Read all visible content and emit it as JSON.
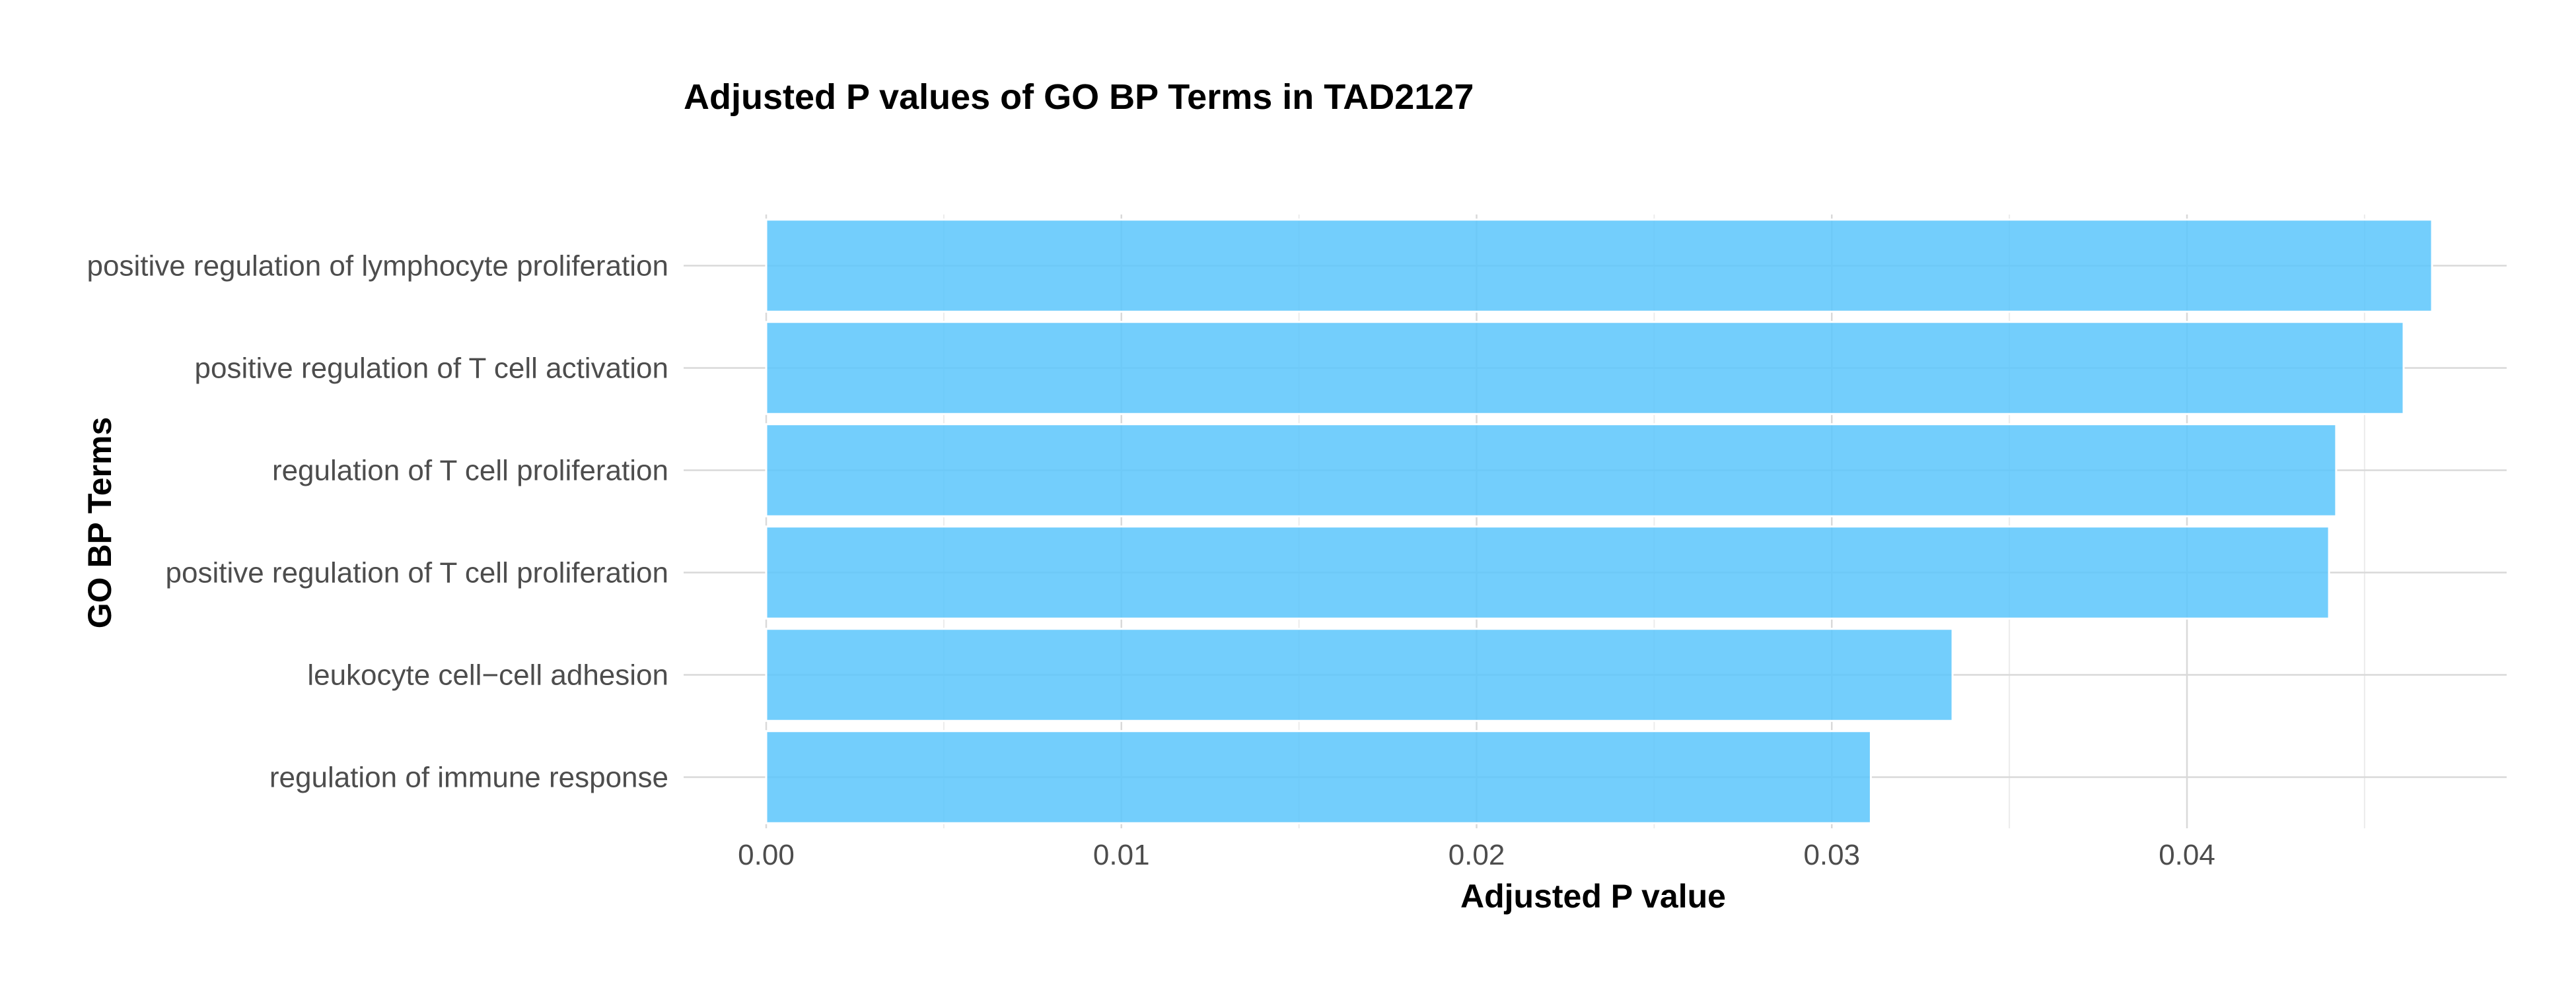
{
  "chart_data": {
    "type": "bar",
    "orientation": "horizontal",
    "title": "Adjusted P values of GO BP Terms in TAD2127",
    "xlabel": "Adjusted P value",
    "ylabel": "GO BP Terms",
    "categories": [
      "positive regulation of lymphocyte proliferation",
      "positive regulation of T cell activation",
      "regulation of T cell proliferation",
      "positive regulation of T cell proliferation",
      "leukocyte cell−cell adhesion",
      "regulation of immune response"
    ],
    "values": [
      0.0469,
      0.0461,
      0.0442,
      0.044,
      0.0334,
      0.0311
    ],
    "xlim": [
      0,
      0.049
    ],
    "xticks": [
      0.0,
      0.01,
      0.02,
      0.03,
      0.04
    ],
    "xtick_labels": [
      "0.00",
      "0.01",
      "0.02",
      "0.03",
      "0.04"
    ],
    "bar_color": "#5bc6fb",
    "grid": true,
    "legend": "none"
  }
}
